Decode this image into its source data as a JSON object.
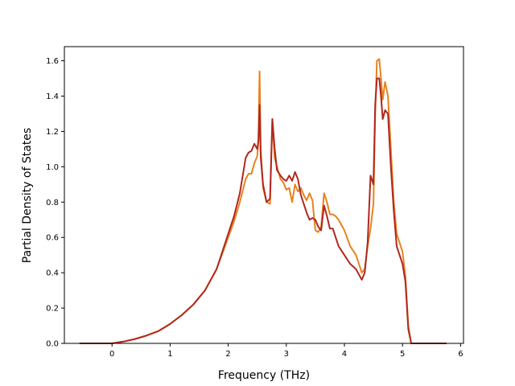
{
  "chart_data": {
    "type": "line",
    "title": "",
    "xlabel": "Frequency (THz)",
    "ylabel": "Partial Density of States",
    "xlim": [
      -0.82,
      6.05
    ],
    "ylim": [
      0.0,
      1.68
    ],
    "xticks": [
      0,
      1,
      2,
      3,
      4,
      5,
      6
    ],
    "xtick_labels": [
      "0",
      "1",
      "2",
      "3",
      "4",
      "5",
      "6"
    ],
    "yticks": [
      0.0,
      0.2,
      0.4,
      0.6,
      0.8,
      1.0,
      1.2,
      1.4,
      1.6
    ],
    "ytick_labels": [
      "0.0",
      "0.2",
      "0.4",
      "0.6",
      "0.8",
      "1.0",
      "1.2",
      "1.4",
      "1.6"
    ],
    "grid": false,
    "legend": "none",
    "series": [
      {
        "color": "#e8821e",
        "x": [
          -0.55,
          0.0,
          0.2,
          0.4,
          0.6,
          0.8,
          1.0,
          1.2,
          1.4,
          1.6,
          1.8,
          2.0,
          2.1,
          2.2,
          2.3,
          2.35,
          2.4,
          2.45,
          2.5,
          2.52,
          2.54,
          2.56,
          2.6,
          2.66,
          2.72,
          2.76,
          2.8,
          2.84,
          2.9,
          2.95,
          3.0,
          3.05,
          3.1,
          3.15,
          3.2,
          3.25,
          3.3,
          3.35,
          3.4,
          3.45,
          3.5,
          3.55,
          3.6,
          3.65,
          3.7,
          3.75,
          3.8,
          3.85,
          3.9,
          4.0,
          4.1,
          4.2,
          4.3,
          4.35,
          4.4,
          4.45,
          4.5,
          4.53,
          4.56,
          4.6,
          4.63,
          4.66,
          4.7,
          4.75,
          4.8,
          4.85,
          4.9,
          5.0,
          5.05,
          5.1,
          5.15,
          5.2,
          5.25,
          5.3,
          5.5,
          5.75
        ],
        "y": [
          0.0,
          0.0,
          0.01,
          0.025,
          0.045,
          0.07,
          0.11,
          0.16,
          0.22,
          0.3,
          0.42,
          0.6,
          0.69,
          0.8,
          0.93,
          0.96,
          0.96,
          1.02,
          1.06,
          1.15,
          1.54,
          1.1,
          0.88,
          0.8,
          0.79,
          1.27,
          1.05,
          1.0,
          0.93,
          0.91,
          0.87,
          0.88,
          0.8,
          0.9,
          0.86,
          0.88,
          0.84,
          0.81,
          0.85,
          0.81,
          0.64,
          0.63,
          0.66,
          0.85,
          0.8,
          0.73,
          0.73,
          0.72,
          0.7,
          0.64,
          0.55,
          0.5,
          0.4,
          0.42,
          0.55,
          0.65,
          0.79,
          1.3,
          1.6,
          1.61,
          1.5,
          1.38,
          1.48,
          1.4,
          1.1,
          0.8,
          0.62,
          0.52,
          0.38,
          0.1,
          0.0,
          0.0,
          0.0,
          0.0,
          0.0,
          0.0
        ]
      },
      {
        "color": "#b0281e",
        "x": [
          -0.55,
          0.0,
          0.2,
          0.4,
          0.6,
          0.8,
          1.0,
          1.2,
          1.4,
          1.6,
          1.8,
          2.0,
          2.1,
          2.2,
          2.3,
          2.35,
          2.4,
          2.45,
          2.5,
          2.52,
          2.54,
          2.56,
          2.6,
          2.66,
          2.72,
          2.76,
          2.8,
          2.84,
          2.9,
          2.95,
          3.0,
          3.05,
          3.1,
          3.15,
          3.2,
          3.25,
          3.3,
          3.35,
          3.4,
          3.45,
          3.5,
          3.55,
          3.6,
          3.65,
          3.7,
          3.75,
          3.8,
          3.85,
          3.9,
          4.0,
          4.1,
          4.2,
          4.3,
          4.35,
          4.4,
          4.45,
          4.5,
          4.53,
          4.56,
          4.6,
          4.63,
          4.66,
          4.7,
          4.75,
          4.8,
          4.85,
          4.9,
          5.0,
          5.05,
          5.1,
          5.15,
          5.2,
          5.25,
          5.3,
          5.5,
          5.75
        ],
        "y": [
          0.0,
          0.0,
          0.01,
          0.025,
          0.045,
          0.07,
          0.11,
          0.16,
          0.22,
          0.3,
          0.42,
          0.62,
          0.72,
          0.85,
          1.05,
          1.08,
          1.09,
          1.13,
          1.1,
          1.15,
          1.35,
          1.05,
          0.9,
          0.8,
          0.82,
          1.27,
          1.1,
          0.98,
          0.95,
          0.93,
          0.92,
          0.95,
          0.92,
          0.97,
          0.93,
          0.84,
          0.79,
          0.74,
          0.7,
          0.71,
          0.7,
          0.66,
          0.64,
          0.78,
          0.72,
          0.65,
          0.65,
          0.6,
          0.55,
          0.5,
          0.45,
          0.42,
          0.36,
          0.4,
          0.57,
          0.95,
          0.9,
          1.35,
          1.5,
          1.5,
          1.4,
          1.27,
          1.32,
          1.3,
          1.0,
          0.75,
          0.55,
          0.45,
          0.35,
          0.08,
          0.0,
          0.0,
          0.0,
          0.0,
          0.0,
          0.0
        ]
      }
    ]
  }
}
